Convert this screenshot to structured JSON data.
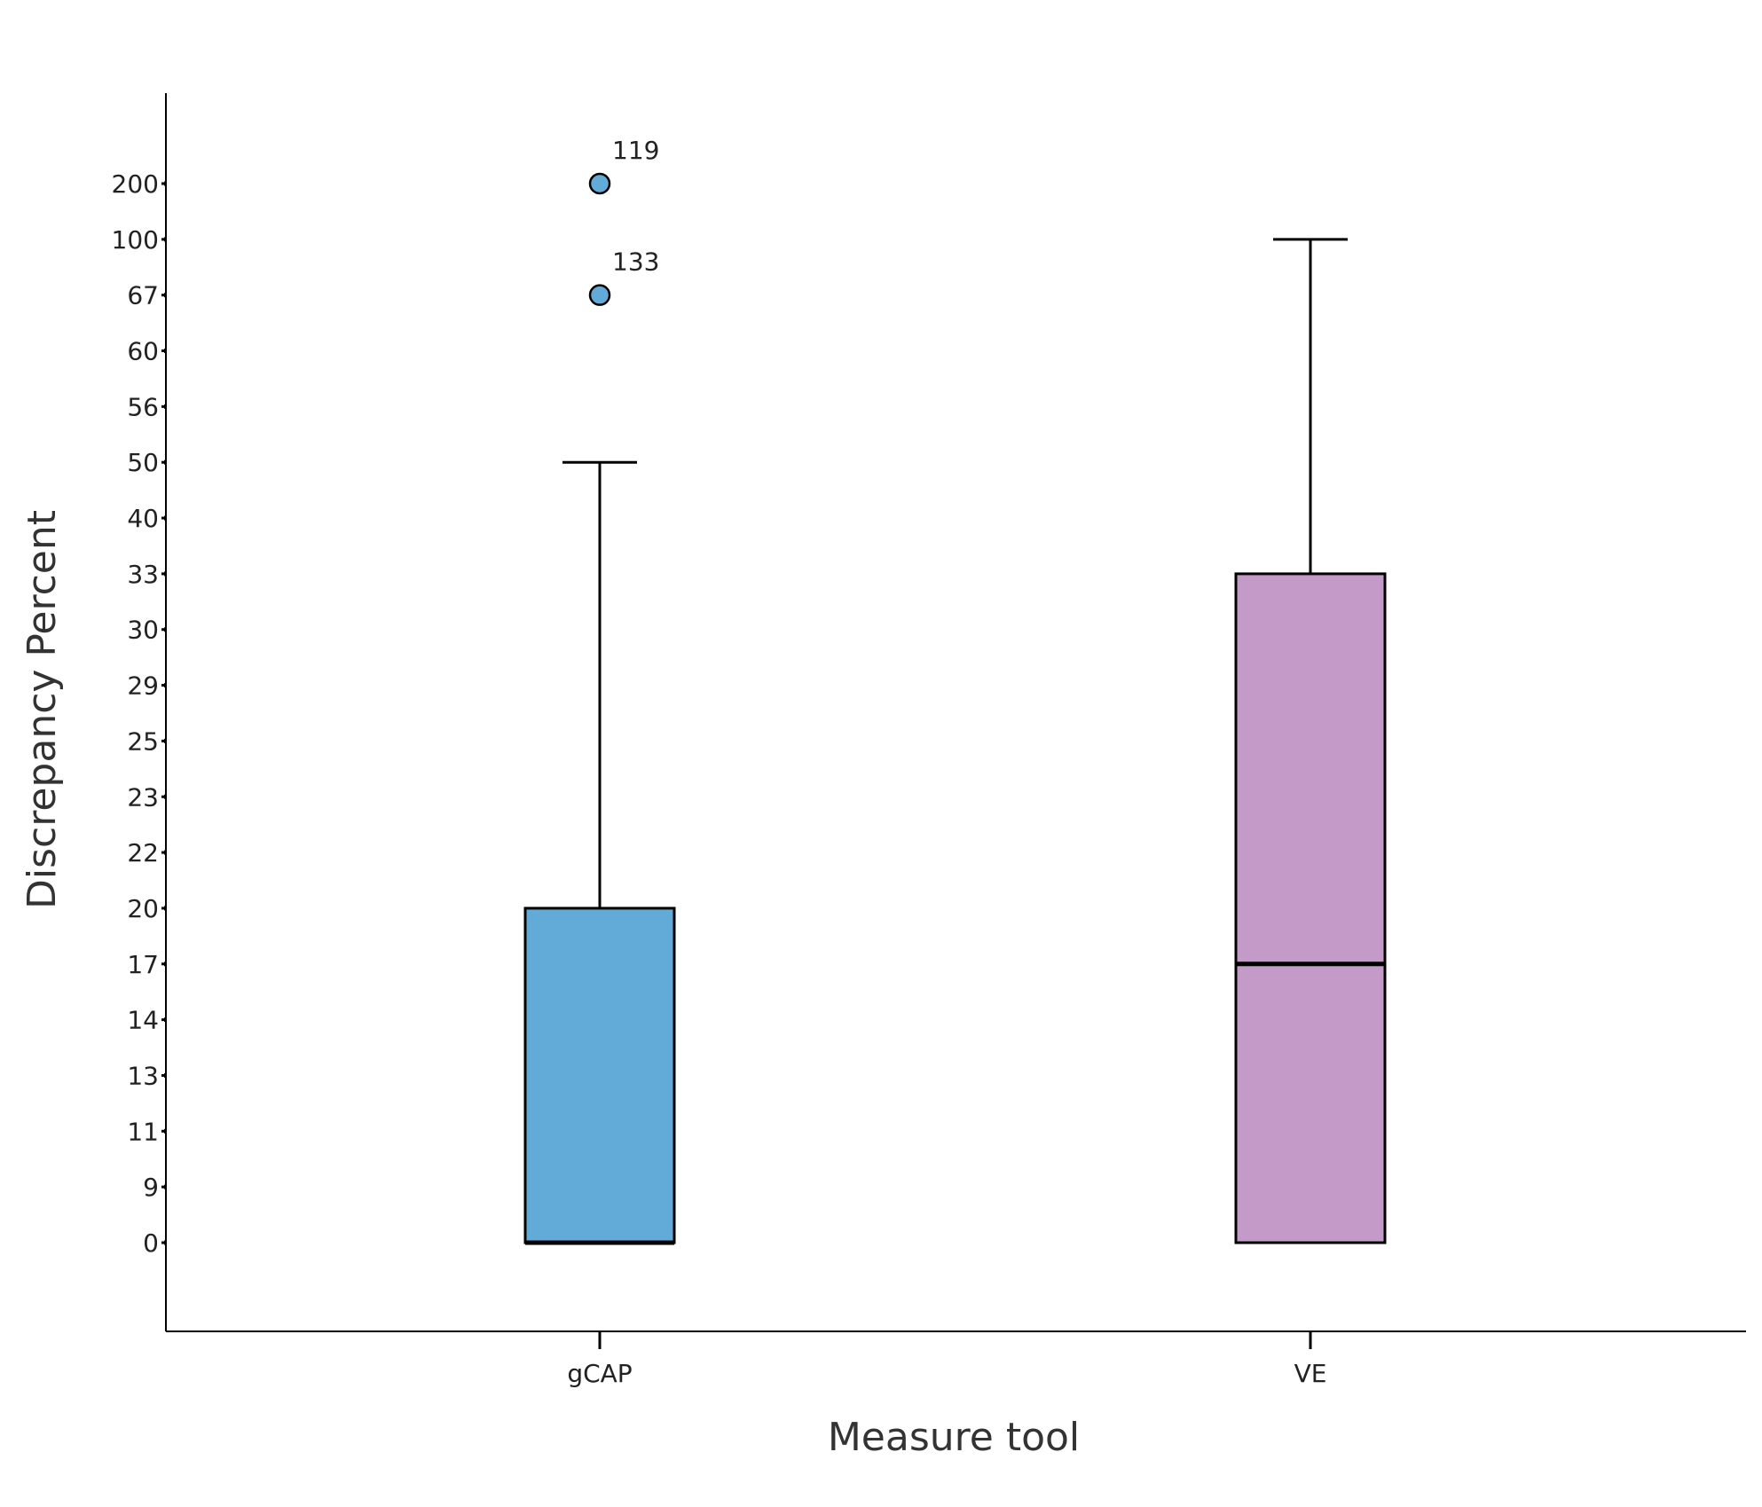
{
  "chart_data": {
    "type": "boxplot",
    "xlabel": "Measure tool",
    "ylabel": "Discrepancy Percent",
    "y_tick_labels": [
      "0",
      "9",
      "11",
      "13",
      "14",
      "17",
      "20",
      "22",
      "23",
      "25",
      "29",
      "30",
      "33",
      "40",
      "50",
      "56",
      "60",
      "67",
      "100",
      "200"
    ],
    "y_scale": "categorical-ordinal",
    "categories": [
      "gCAP",
      "VE"
    ],
    "series": [
      {
        "category": "gCAP",
        "color": "#62abd8",
        "whisker_low": "0",
        "q1": "0",
        "median": "0",
        "q3": "20",
        "whisker_high": "50",
        "outliers": [
          {
            "value": "200",
            "label": "119"
          },
          {
            "value": "67",
            "label": "133"
          }
        ]
      },
      {
        "category": "VE",
        "color": "#c49bc8",
        "whisker_low": "0",
        "q1": "0",
        "median": "17",
        "q3": "33",
        "whisker_high": "100",
        "outliers": []
      }
    ],
    "grid": false,
    "legend": "none"
  }
}
